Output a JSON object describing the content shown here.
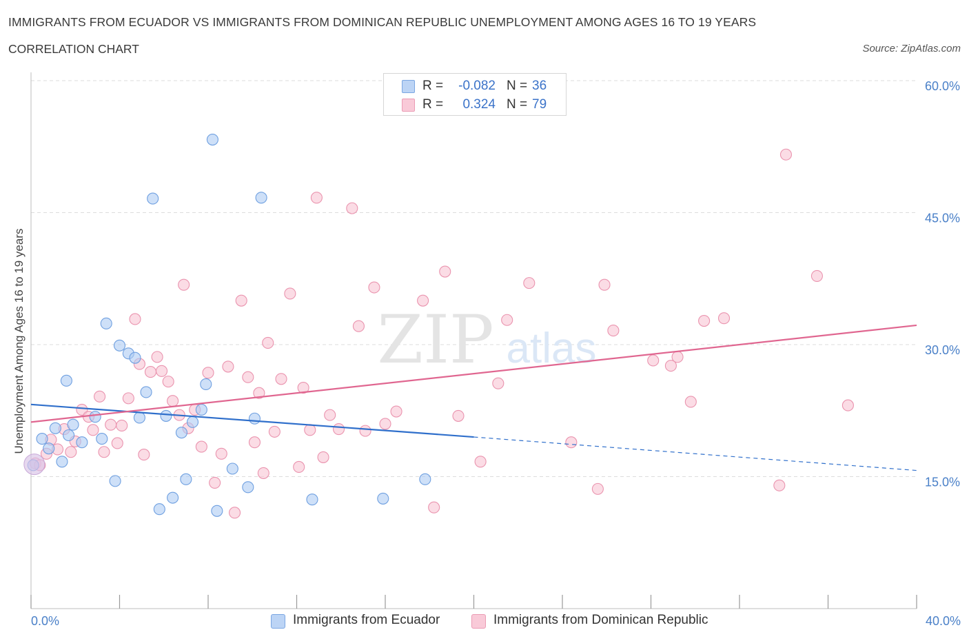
{
  "title": "IMMIGRANTS FROM ECUADOR VS IMMIGRANTS FROM DOMINICAN REPUBLIC UNEMPLOYMENT AMONG AGES 16 TO 19 YEARS",
  "subtitle": "CORRELATION CHART",
  "source": "Source: ZipAtlas.com",
  "watermark": {
    "zip": "ZIP",
    "atlas": "atlas"
  },
  "legend_top": [
    {
      "r_label": "R =",
      "r_value": "-0.082",
      "n_label": "N =",
      "n_value": "36"
    },
    {
      "r_label": "R =",
      "r_value": "0.324",
      "n_label": "N =",
      "n_value": "79"
    }
  ],
  "x_axis": {
    "min_label": "0.0%",
    "max_label": "40.0%"
  },
  "colors": {
    "ecuador_fill": "#aecbf3",
    "ecuador_stroke": "#6e9fe0",
    "ecuador_line": "#2f6fcb",
    "dominican_fill": "#f8c4d4",
    "dominican_stroke": "#ea93ae",
    "dominican_line": "#e06690",
    "tick_text": "#4a80c8",
    "grid": "#dcdcdc"
  },
  "chart_data": {
    "type": "scatter",
    "ylabel": "Unemployment Among Ages 16 to 19 years",
    "xlim": [
      0,
      40
    ],
    "ylim": [
      0,
      60
    ],
    "y_ticks": [
      {
        "value": 15,
        "label": "15.0%"
      },
      {
        "value": 30,
        "label": "30.0%"
      },
      {
        "value": 45,
        "label": "45.0%"
      },
      {
        "value": 60,
        "label": "60.0%"
      }
    ],
    "grid": true,
    "legend_position": "bottom",
    "series": [
      {
        "name": "Immigrants from Ecuador",
        "color": "#6e9fe0",
        "trend": {
          "x0": 0,
          "y0": 23.2,
          "x1": 20,
          "y1": 19.5,
          "dashed_to_x": 40,
          "dashed_to_y": 15.7
        },
        "points": [
          [
            0.1,
            16.3
          ],
          [
            0.5,
            19.3
          ],
          [
            0.8,
            18.2
          ],
          [
            1.1,
            20.5
          ],
          [
            1.6,
            25.9
          ],
          [
            1.7,
            19.7
          ],
          [
            1.9,
            20.9
          ],
          [
            2.3,
            18.9
          ],
          [
            2.9,
            21.8
          ],
          [
            3.2,
            19.3
          ],
          [
            3.4,
            32.4
          ],
          [
            3.8,
            14.5
          ],
          [
            4.0,
            29.9
          ],
          [
            4.4,
            29.0
          ],
          [
            4.7,
            28.5
          ],
          [
            4.9,
            21.7
          ],
          [
            5.2,
            24.6
          ],
          [
            5.5,
            46.6
          ],
          [
            5.8,
            11.3
          ],
          [
            6.1,
            21.9
          ],
          [
            6.4,
            12.6
          ],
          [
            6.8,
            20.0
          ],
          [
            7.0,
            14.7
          ],
          [
            7.3,
            21.2
          ],
          [
            7.7,
            22.6
          ],
          [
            7.9,
            25.5
          ],
          [
            8.2,
            53.3
          ],
          [
            8.4,
            11.1
          ],
          [
            9.1,
            15.9
          ],
          [
            9.8,
            13.8
          ],
          [
            10.1,
            21.6
          ],
          [
            10.4,
            46.7
          ],
          [
            12.7,
            12.4
          ],
          [
            15.9,
            12.5
          ],
          [
            17.8,
            14.7
          ],
          [
            1.4,
            16.7
          ]
        ]
      },
      {
        "name": "Immigrants from Dominican Republic",
        "color": "#ea93ae",
        "trend": {
          "x0": 0,
          "y0": 21.2,
          "x1": 40,
          "y1": 32.2
        },
        "points": [
          [
            0.2,
            16.5
          ],
          [
            0.4,
            16.3
          ],
          [
            0.7,
            17.6
          ],
          [
            0.9,
            19.2
          ],
          [
            1.2,
            18.1
          ],
          [
            1.5,
            20.4
          ],
          [
            1.8,
            17.8
          ],
          [
            2.0,
            19.0
          ],
          [
            2.3,
            22.6
          ],
          [
            2.6,
            21.8
          ],
          [
            2.8,
            20.3
          ],
          [
            3.1,
            24.1
          ],
          [
            3.3,
            17.8
          ],
          [
            3.6,
            20.9
          ],
          [
            3.9,
            18.8
          ],
          [
            4.1,
            20.8
          ],
          [
            4.4,
            23.9
          ],
          [
            4.7,
            32.9
          ],
          [
            4.9,
            27.8
          ],
          [
            5.1,
            17.5
          ],
          [
            5.4,
            26.9
          ],
          [
            5.7,
            28.6
          ],
          [
            5.9,
            27.0
          ],
          [
            6.2,
            25.8
          ],
          [
            6.4,
            23.6
          ],
          [
            6.7,
            22.0
          ],
          [
            6.9,
            36.8
          ],
          [
            7.1,
            20.5
          ],
          [
            7.4,
            22.6
          ],
          [
            7.7,
            18.4
          ],
          [
            8.0,
            26.8
          ],
          [
            8.3,
            14.3
          ],
          [
            8.6,
            17.6
          ],
          [
            8.9,
            27.5
          ],
          [
            9.2,
            10.9
          ],
          [
            9.5,
            35.0
          ],
          [
            9.8,
            26.3
          ],
          [
            10.1,
            18.9
          ],
          [
            10.3,
            24.5
          ],
          [
            10.5,
            15.4
          ],
          [
            10.7,
            30.2
          ],
          [
            11.0,
            20.1
          ],
          [
            11.3,
            26.1
          ],
          [
            11.7,
            35.8
          ],
          [
            12.1,
            16.1
          ],
          [
            12.3,
            25.1
          ],
          [
            12.6,
            20.3
          ],
          [
            12.9,
            46.7
          ],
          [
            13.2,
            17.2
          ],
          [
            13.5,
            22.0
          ],
          [
            13.9,
            20.4
          ],
          [
            14.5,
            45.5
          ],
          [
            14.8,
            32.1
          ],
          [
            15.1,
            20.2
          ],
          [
            15.5,
            36.5
          ],
          [
            16.0,
            21.0
          ],
          [
            16.5,
            22.4
          ],
          [
            17.7,
            35.0
          ],
          [
            18.2,
            11.5
          ],
          [
            18.7,
            38.3
          ],
          [
            19.3,
            21.9
          ],
          [
            20.3,
            16.7
          ],
          [
            21.1,
            25.6
          ],
          [
            21.5,
            32.8
          ],
          [
            22.5,
            37.0
          ],
          [
            24.4,
            18.9
          ],
          [
            25.6,
            13.6
          ],
          [
            25.9,
            36.8
          ],
          [
            26.3,
            31.6
          ],
          [
            28.1,
            28.2
          ],
          [
            28.9,
            27.6
          ],
          [
            29.2,
            28.6
          ],
          [
            29.8,
            23.5
          ],
          [
            30.4,
            32.7
          ],
          [
            31.3,
            33.0
          ],
          [
            33.8,
            14.0
          ],
          [
            34.1,
            51.6
          ],
          [
            35.5,
            37.8
          ],
          [
            36.9,
            23.1
          ]
        ]
      }
    ]
  }
}
